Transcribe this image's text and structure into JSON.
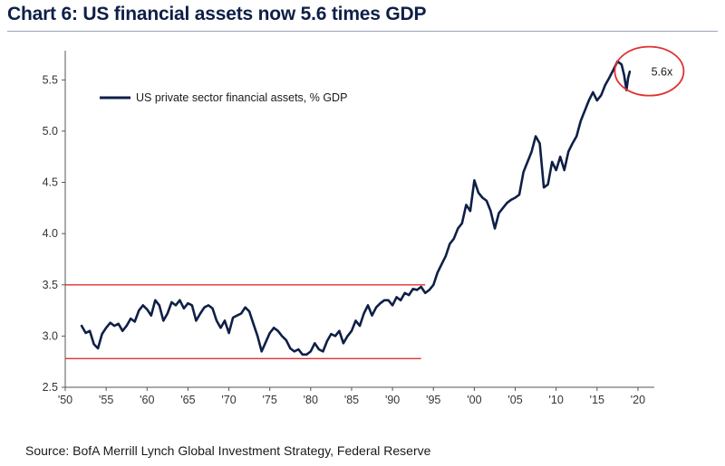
{
  "chart_data": {
    "type": "line",
    "title": "Chart 6: US financial assets now 5.6 times GDP",
    "source": "Source: BofA Merrill Lynch Global Investment Strategy, Federal Reserve",
    "xlim": [
      1950,
      2022
    ],
    "ylim": [
      2.5,
      5.75
    ],
    "x_ticks": [
      1950,
      1955,
      1960,
      1965,
      1970,
      1975,
      1980,
      1985,
      1990,
      1995,
      2000,
      2005,
      2010,
      2015,
      2020
    ],
    "x_tick_labels": [
      "'50",
      "'55",
      "'60",
      "'65",
      "'70",
      "'75",
      "'80",
      "'85",
      "'90",
      "'95",
      "'00",
      "'05",
      "'10",
      "'15",
      "'20"
    ],
    "y_ticks": [
      2.5,
      3.0,
      3.5,
      4.0,
      4.5,
      5.0,
      5.5
    ],
    "y_tick_labels": [
      "2.5",
      "3.0",
      "3.5",
      "4.0",
      "4.5",
      "5.0",
      "5.5"
    ],
    "grid": false,
    "legend_position": "top-left",
    "colors": {
      "series": "#0e1f47",
      "reference_lines": "#e03030",
      "annotation": "#e03030"
    },
    "series": [
      {
        "name": "US private sector financial assets, % GDP",
        "x": [
          1952,
          1952.5,
          1953,
          1953.5,
          1954,
          1954.5,
          1955,
          1955.5,
          1956,
          1956.5,
          1957,
          1957.5,
          1958,
          1958.5,
          1959,
          1959.5,
          1960,
          1960.5,
          1961,
          1961.5,
          1962,
          1962.5,
          1963,
          1963.5,
          1964,
          1964.5,
          1965,
          1965.5,
          1966,
          1966.5,
          1967,
          1967.5,
          1968,
          1968.5,
          1969,
          1969.5,
          1970,
          1970.5,
          1971,
          1971.5,
          1972,
          1972.5,
          1973,
          1973.5,
          1974,
          1974.5,
          1975,
          1975.5,
          1976,
          1976.5,
          1977,
          1977.5,
          1978,
          1978.5,
          1979,
          1979.5,
          1980,
          1980.5,
          1981,
          1981.5,
          1982,
          1982.5,
          1983,
          1983.5,
          1984,
          1984.5,
          1985,
          1985.5,
          1986,
          1986.5,
          1987,
          1987.5,
          1988,
          1988.5,
          1989,
          1989.5,
          1990,
          1990.5,
          1991,
          1991.5,
          1992,
          1992.5,
          1993,
          1993.5,
          1994,
          1994.5,
          1995,
          1995.5,
          1996,
          1996.5,
          1997,
          1997.5,
          1998,
          1998.5,
          1999,
          1999.5,
          2000,
          2000.5,
          2001,
          2001.5,
          2002,
          2002.5,
          2003,
          2003.5,
          2004,
          2004.5,
          2005,
          2005.5,
          2006,
          2006.5,
          2007,
          2007.5,
          2008,
          2008.5,
          2009,
          2009.5,
          2010,
          2010.5,
          2011,
          2011.5,
          2012,
          2012.5,
          2013,
          2013.5,
          2014,
          2014.5,
          2015,
          2015.5,
          2016,
          2016.5,
          2017,
          2017.5,
          2018,
          2018.3,
          2018.6,
          2018.8,
          2019
        ],
        "values": [
          3.1,
          3.03,
          3.05,
          2.92,
          2.88,
          3.02,
          3.08,
          3.13,
          3.1,
          3.12,
          3.05,
          3.1,
          3.17,
          3.14,
          3.25,
          3.3,
          3.26,
          3.2,
          3.35,
          3.3,
          3.15,
          3.22,
          3.33,
          3.3,
          3.35,
          3.27,
          3.32,
          3.3,
          3.15,
          3.22,
          3.28,
          3.3,
          3.27,
          3.15,
          3.08,
          3.15,
          3.03,
          3.18,
          3.2,
          3.22,
          3.28,
          3.24,
          3.12,
          3.0,
          2.85,
          2.94,
          3.03,
          3.08,
          3.05,
          3.0,
          2.96,
          2.88,
          2.85,
          2.87,
          2.82,
          2.82,
          2.85,
          2.93,
          2.87,
          2.85,
          2.95,
          3.02,
          3.0,
          3.05,
          2.93,
          3.0,
          3.05,
          3.15,
          3.1,
          3.22,
          3.3,
          3.2,
          3.28,
          3.32,
          3.35,
          3.35,
          3.3,
          3.38,
          3.35,
          3.42,
          3.4,
          3.46,
          3.45,
          3.48,
          3.42,
          3.45,
          3.5,
          3.62,
          3.7,
          3.78,
          3.9,
          3.95,
          4.05,
          4.1,
          4.28,
          4.22,
          4.52,
          4.4,
          4.35,
          4.32,
          4.22,
          4.05,
          4.2,
          4.25,
          4.3,
          4.33,
          4.35,
          4.38,
          4.6,
          4.7,
          4.8,
          4.95,
          4.88,
          4.45,
          4.48,
          4.7,
          4.62,
          4.75,
          4.62,
          4.8,
          4.88,
          4.95,
          5.1,
          5.2,
          5.3,
          5.38,
          5.3,
          5.35,
          5.45,
          5.52,
          5.6,
          5.68,
          5.65,
          5.55,
          5.4,
          5.52,
          5.58
        ]
      }
    ],
    "reference_lines": [
      {
        "y": 3.5,
        "x_start": 1950,
        "x_end": 1994
      },
      {
        "y": 2.78,
        "x_start": 1950,
        "x_end": 1993.5
      }
    ],
    "annotation": {
      "text": "5.6x",
      "x": 2018.5,
      "y": 5.55
    }
  }
}
